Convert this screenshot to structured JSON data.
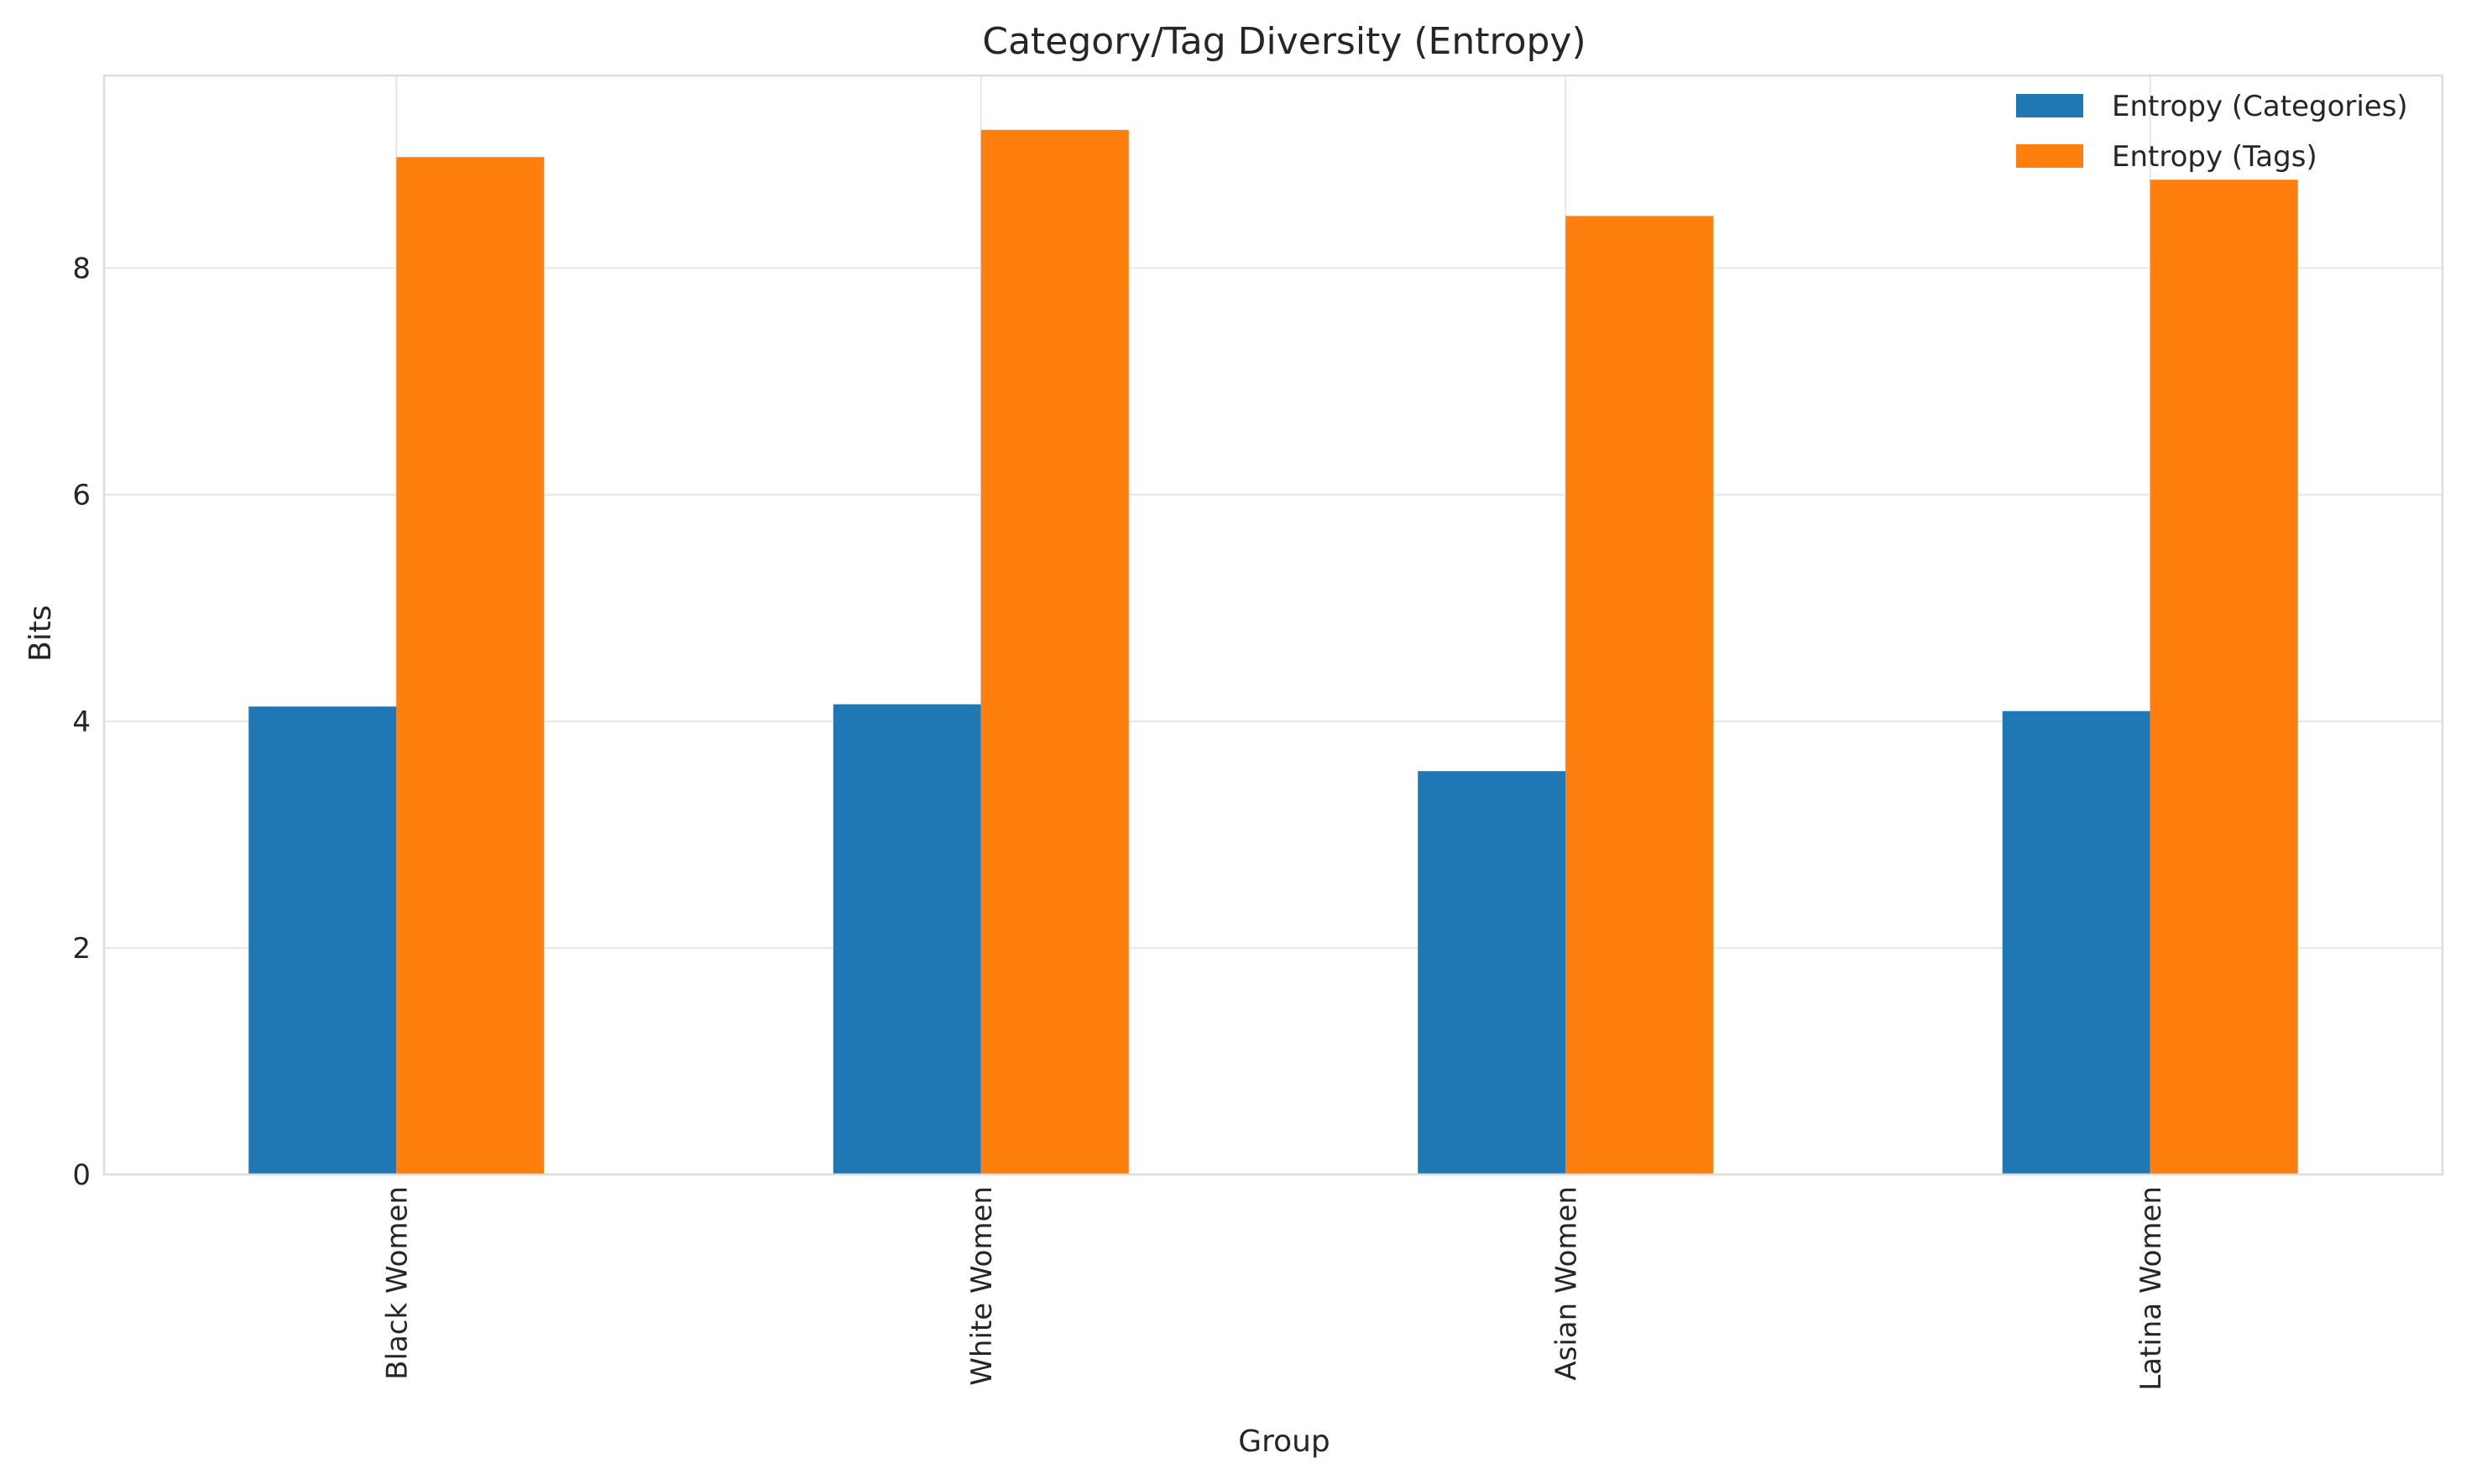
{
  "chart_data": {
    "type": "bar",
    "title": "Category/Tag Diversity (Entropy)",
    "xlabel": "Group",
    "ylabel": "Bits",
    "categories": [
      "Black Women",
      "White Women",
      "Asian Women",
      "Latina Women"
    ],
    "series": [
      {
        "name": "Entropy (Categories)",
        "values": [
          4.13,
          4.15,
          3.56,
          4.09
        ],
        "color": "#1f77b4"
      },
      {
        "name": "Entropy (Tags)",
        "values": [
          8.98,
          9.22,
          8.46,
          8.78
        ],
        "color": "#ff7f0e"
      }
    ],
    "ylim": [
      0,
      9.7
    ],
    "yticks": [
      "0",
      "2",
      "4",
      "6",
      "8"
    ],
    "grid": true,
    "legend_position": "top-right",
    "xtick_rotation": "vertical"
  }
}
